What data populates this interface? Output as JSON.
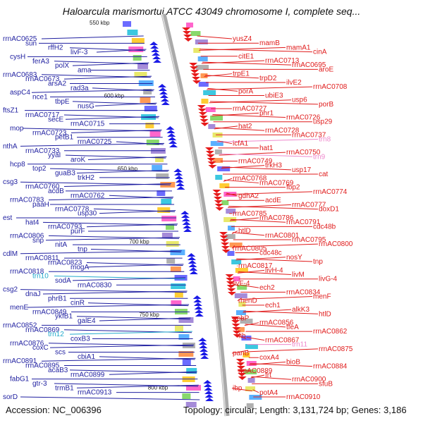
{
  "title": "Haloarcula marismortui ATCC 43049 chromosome I, complete seq...",
  "accession": "Accession: NC_006396",
  "meta": "Topology: circular; Length: 3,131,724 bp; Genes: 3,186",
  "colors": {
    "left": "#1f1fa0",
    "right": "#e01b1b",
    "rna_left": "#22aacc",
    "rna_right": "#ee88cc",
    "backbone": "#999999"
  },
  "ticks": [
    "550 kbp",
    "600 kbp",
    "650 kbp",
    "700 kbp",
    "750 kbp",
    "800 kbp"
  ],
  "left_genes": [
    "rrnAC0625",
    "sun",
    "rffH2",
    "livF-3",
    "cysH",
    "ferA3",
    "polX",
    "ama",
    "rrnAC0683",
    "rrnAC0673",
    "arsA2",
    "rad3a",
    "aspC4",
    "nce1",
    "tbpE",
    "nusG",
    "ftsZ1",
    "rrnAC0717",
    "secE",
    "rrnAC0715",
    "mop",
    "rrnAC0723",
    "petB1",
    "rrnAC0725",
    "nthA",
    "rrnAC0733",
    "yyaI",
    "aroK",
    "hcp8",
    "top2",
    "guaB3",
    "trkH2",
    "csg3",
    "rrnAC0760",
    "acdB",
    "rrnAC0762",
    "rrnAC0783",
    "paaH",
    "rrnAC0778",
    "usp30",
    "est",
    "hat4",
    "rrnAC0793",
    "purF",
    "rrnAC0806",
    "snp",
    "nitA",
    "tnp",
    "cdlM",
    "rrnAC0811",
    "rrnAC0823",
    "mogA",
    "rrnAC0818",
    "trn10",
    "sodA",
    "rrnAC0830",
    "csg2",
    "dnaJ",
    "phrB1",
    "cinR",
    "menE",
    "rrnAC0849",
    "ykfB1",
    "galE4",
    "rrnAC0852",
    "rrnAC0869",
    "trn12",
    "coxB3",
    "rrnAC0876",
    "coxC",
    "scs",
    "cbiA1",
    "rrnAC0891",
    "rrnAC0895",
    "acaB3",
    "rrnAC0899",
    "fabG1",
    "gtr-3",
    "trmB1",
    "rrnAC0913",
    "sorD"
  ],
  "right_genes": [
    "yusZ4",
    "mamB",
    "mamA1",
    "cinA",
    "citE1",
    "rrnAC0713",
    "rrnAC0695",
    "aroE",
    "trpE1",
    "trpD2",
    "ilvE2",
    "rrnAC0708",
    "porA",
    "ubiE3",
    "usp6",
    "porB",
    "rrnAC0727",
    "phr1",
    "rrnAC0726",
    "usp29",
    "hat2",
    "rrnAC0728",
    "rrnAC0737",
    "trn8",
    "icfA1",
    "hat1",
    "rrnAC0750",
    "trn9",
    "rrnAC0749",
    "trkH3",
    "usp17",
    "cat",
    "rrnAC0768",
    "rrnAC0769",
    "fbp2",
    "rrnAC0774",
    "gdhA2",
    "acdE",
    "rrnAC0777",
    "doxD1",
    "rrnAC0785",
    "rrnAC0786",
    "rrnAC0791",
    "cdc48b",
    "htlD",
    "rrnAC0801",
    "rrnAC0795",
    "rrnAC0800",
    "rrnAC0805",
    "cdc48c",
    "nosY",
    "tnp",
    "rrnAC0817",
    "livH-4",
    "livM",
    "livG-4",
    "livF-4",
    "ech2",
    "rrnAC0834",
    "menF",
    "menD",
    "ech1",
    "alkK3",
    "htlD",
    "pebP",
    "rrnAC0856",
    "tfeA",
    "rrnAC0862",
    "fib",
    "rrnAC0867",
    "trn11",
    "rrnAC0875",
    "panB",
    "coxA4",
    "bioB",
    "rrnAC0884",
    "rrnAC0889",
    "frt",
    "rrnAC0900",
    "sfuB",
    "ibp",
    "potA4",
    "rrnAC0910"
  ]
}
